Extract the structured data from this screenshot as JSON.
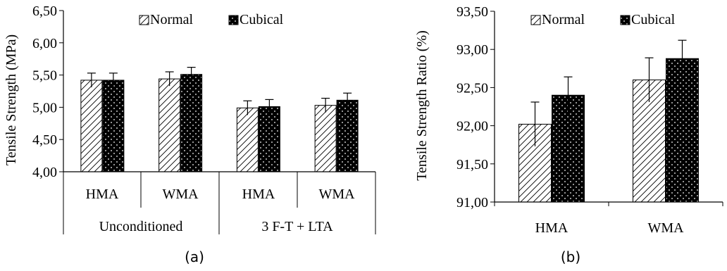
{
  "chart_data": [
    {
      "type": "bar",
      "panel_label": "(a)",
      "ylabel": "Tensile Strength (MPa)",
      "ylim": [
        4.0,
        6.5
      ],
      "yticks": [
        "4,00",
        "4,50",
        "5,00",
        "5,50",
        "6,00",
        "6,50"
      ],
      "categories": [
        "HMA",
        "WMA",
        "HMA",
        "WMA"
      ],
      "groups": [
        "Unconditioned",
        "3 F-T + LTA"
      ],
      "series": [
        {
          "name": "Normal",
          "values": [
            5.42,
            5.44,
            4.99,
            5.03
          ],
          "errors": [
            0.11,
            0.11,
            0.11,
            0.11
          ]
        },
        {
          "name": "Cubical",
          "values": [
            5.42,
            5.51,
            5.01,
            5.11
          ],
          "errors": [
            0.11,
            0.11,
            0.11,
            0.11
          ]
        }
      ],
      "legend": "top"
    },
    {
      "type": "bar",
      "panel_label": "(b)",
      "ylabel": "Tensile Strength Ratio (%)",
      "ylim": [
        91.0,
        93.5
      ],
      "yticks": [
        "91,00",
        "91,50",
        "92,00",
        "92,50",
        "93,00",
        "93,50"
      ],
      "categories": [
        "HMA",
        "WMA"
      ],
      "series": [
        {
          "name": "Normal",
          "values": [
            92.02,
            92.6
          ],
          "errors": [
            0.29,
            0.29
          ]
        },
        {
          "name": "Cubical",
          "values": [
            92.4,
            92.88
          ],
          "errors": [
            0.24,
            0.24
          ]
        }
      ],
      "legend": "top"
    }
  ],
  "colors": {
    "axis": "#000000",
    "cubical_fill": "#000000",
    "normal_fill": "#ffffff"
  }
}
